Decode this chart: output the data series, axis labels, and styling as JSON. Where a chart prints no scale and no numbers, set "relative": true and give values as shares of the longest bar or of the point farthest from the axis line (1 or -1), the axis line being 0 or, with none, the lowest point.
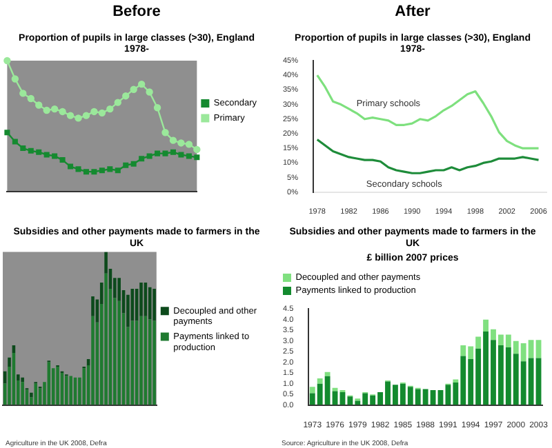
{
  "chart_data": [
    {
      "type": "line",
      "title": "Before",
      "subtitle": "Proportion of pupils in large classes (>30), England 1978-",
      "relative": true,
      "legend": "right",
      "categories": [
        null,
        null,
        null,
        null,
        null,
        null,
        null,
        null,
        null,
        null,
        null,
        null,
        null,
        null,
        null,
        null,
        null,
        null,
        null,
        null,
        null,
        null,
        null,
        null,
        null
      ],
      "series": [
        {
          "name": "Primary",
          "color": "#9be89b",
          "marker": "circle",
          "values": [
            1,
            0.86,
            0.75,
            0.71,
            0.66,
            0.62,
            0.63,
            0.61,
            0.58,
            0.56,
            0.58,
            0.61,
            0.6,
            0.63,
            0.68,
            0.73,
            0.78,
            0.82,
            0.76,
            0.64,
            0.45,
            0.39,
            0.37,
            0.36,
            0.32
          ]
        },
        {
          "name": "Secondary",
          "color": "#158a30",
          "marker": "square",
          "values": [
            0.45,
            0.38,
            0.33,
            0.31,
            0.3,
            0.28,
            0.27,
            0.24,
            0.19,
            0.17,
            0.15,
            0.15,
            0.16,
            0.17,
            0.16,
            0.2,
            0.21,
            0.25,
            0.27,
            0.29,
            0.29,
            0.3,
            0.28,
            0.27,
            0.26
          ]
        }
      ]
    },
    {
      "type": "line",
      "title": "After",
      "subtitle": "Proportion of pupils in large classes (>30), England 1978-",
      "x": [
        1978,
        1979,
        1980,
        1981,
        1982,
        1983,
        1984,
        1985,
        1986,
        1987,
        1988,
        1989,
        1990,
        1991,
        1992,
        1993,
        1994,
        1995,
        1996,
        1997,
        1998,
        1999,
        2000,
        2001,
        2002,
        2003,
        2004,
        2005,
        2006
      ],
      "xlim": [
        1977.5,
        2007
      ],
      "xticks": [
        1978,
        1982,
        1986,
        1990,
        1994,
        1998,
        2002,
        2006
      ],
      "ylim": [
        0,
        45
      ],
      "yticks": [
        {
          "value": 0,
          "label": "0%"
        },
        {
          "value": 5,
          "label": "5%"
        },
        {
          "value": 10,
          "label": "10%"
        },
        {
          "value": 15,
          "label": "15%"
        },
        {
          "value": 20,
          "label": "20%"
        },
        {
          "value": 25,
          "label": "25%"
        },
        {
          "value": 30,
          "label": "30%"
        },
        {
          "value": 35,
          "label": "35%"
        },
        {
          "value": 40,
          "label": "40%"
        },
        {
          "value": 45,
          "label": "45%"
        }
      ],
      "series": [
        {
          "name": "Primary schools",
          "color": "#7ee07e",
          "values": [
            40,
            36,
            31,
            30,
            28.5,
            27,
            25,
            25.5,
            25,
            24.5,
            23,
            23,
            23.5,
            25,
            24.5,
            26,
            28,
            29.5,
            31.5,
            33.5,
            34.5,
            30.5,
            26,
            20.5,
            17.5,
            16,
            15,
            15,
            15
          ]
        },
        {
          "name": "Secondary schools",
          "color": "#1e8c3a",
          "values": [
            18,
            16,
            14,
            13,
            12,
            11.5,
            11,
            11,
            10.5,
            8.5,
            7.5,
            7,
            6.5,
            6.5,
            7,
            7.5,
            7.5,
            8.5,
            7.5,
            8.5,
            9,
            10,
            10.5,
            11.5,
            11.5,
            11.5,
            12,
            11.5,
            11
          ]
        }
      ]
    },
    {
      "type": "bar",
      "title": "Subsidies and other payments made to farmers in the UK",
      "relative": true,
      "stacked": true,
      "legend": "right",
      "annotations": [
        "Agriculture in the UK 2008, Defra"
      ],
      "categories": [
        null,
        null,
        null,
        null,
        null,
        null,
        null,
        null,
        null,
        null,
        null,
        null,
        null,
        null,
        null,
        null,
        null,
        null,
        null,
        null,
        null,
        null,
        null,
        null,
        null,
        null,
        null,
        null,
        null,
        null,
        null,
        null,
        null,
        null,
        null
      ],
      "series": [
        {
          "name": "Payments linked to production",
          "color": "#1f7a30",
          "values": [
            0.14,
            0.25,
            0.34,
            0.16,
            0.15,
            0.1,
            0.05,
            0.14,
            0.11,
            0.15,
            0.28,
            0.24,
            0.25,
            0.21,
            0.19,
            0.19,
            0.18,
            0.18,
            0.24,
            0.26,
            0.58,
            0.54,
            0.66,
            0.86,
            0.76,
            0.7,
            0.68,
            0.6,
            0.51,
            0.55,
            0.55,
            0.58,
            0.58,
            0.56,
            0.55
          ]
        },
        {
          "name": "Decoupled and other payments",
          "color": "#0d4a1c",
          "values": [
            0.08,
            0.06,
            0.05,
            0.04,
            0.03,
            0.01,
            0.03,
            0.01,
            0.01,
            0,
            0.01,
            0,
            0.01,
            0.01,
            0.01,
            0,
            0,
            0,
            0.01,
            0.04,
            0.13,
            0.15,
            0.14,
            0.14,
            0.13,
            0.13,
            0.15,
            0.15,
            0.21,
            0.21,
            0.21,
            0.22,
            0.22,
            0.21,
            0.21
          ]
        }
      ]
    },
    {
      "type": "bar",
      "title": "Subsidies and other payments made to farmers in the UK",
      "subtitle": "£ billion 2007 prices",
      "stacked": true,
      "legend": "top left",
      "annotations": [
        "Source: Agriculture in the UK 2008, Defra"
      ],
      "categories": [
        "1973",
        null,
        null,
        "1976",
        null,
        null,
        "1979",
        null,
        null,
        "1982",
        null,
        null,
        "1985",
        null,
        null,
        "1988",
        null,
        null,
        "1991",
        null,
        null,
        "1994",
        null,
        null,
        "1997",
        null,
        null,
        "2000",
        null,
        null,
        "2003"
      ],
      "ylim": [
        0,
        4.5
      ],
      "yticks": [
        {
          "value": 0,
          "label": "0.0"
        },
        {
          "value": 0.5,
          "label": "0.5"
        },
        {
          "value": 1,
          "label": "1.0"
        },
        {
          "value": 1.5,
          "label": "1.5"
        },
        {
          "value": 2,
          "label": "2.0"
        },
        {
          "value": 2.5,
          "label": "2.5"
        },
        {
          "value": 3,
          "label": "3.0"
        },
        {
          "value": 3.5,
          "label": "3.5"
        },
        {
          "value": 4,
          "label": "4.0"
        },
        {
          "value": 4.5,
          "label": "4.5"
        }
      ],
      "series": [
        {
          "name": "Payments linked to production",
          "color": "#138a2e",
          "values": [
            0.55,
            1,
            1.35,
            0.65,
            0.6,
            0.4,
            0.2,
            0.55,
            0.45,
            0.6,
            1.1,
            0.95,
            1,
            0.85,
            0.75,
            0.75,
            0.7,
            0.7,
            0.95,
            1.05,
            2.3,
            2.15,
            2.65,
            3.45,
            3.05,
            2.8,
            2.7,
            2.4,
            2.05,
            2.2,
            2.2
          ]
        },
        {
          "name": "Decoupled and other payments",
          "color": "#80e080",
          "values": [
            0.3,
            0.25,
            0.2,
            0.15,
            0.1,
            0.05,
            0.1,
            0.05,
            0.05,
            0,
            0.05,
            0,
            0.05,
            0.05,
            0.05,
            0,
            0,
            0,
            0.05,
            0.15,
            0.5,
            0.6,
            0.55,
            0.55,
            0.5,
            0.5,
            0.6,
            0.6,
            0.85,
            0.85,
            0.85
          ]
        }
      ]
    }
  ]
}
